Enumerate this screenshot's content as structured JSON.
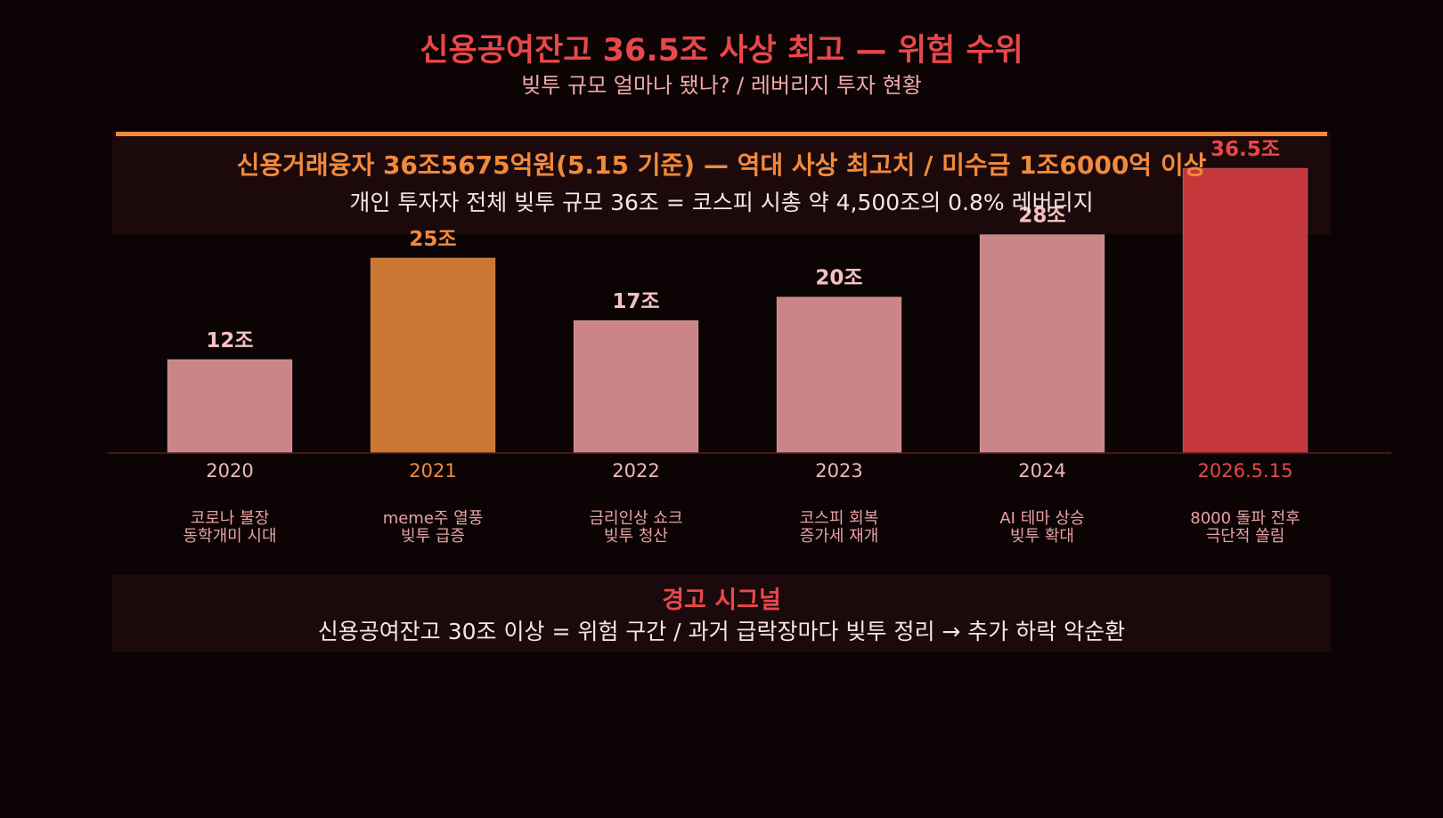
{
  "header": {
    "title": "신용공여잔고 36.5조 사상 최고 — 위험 수위",
    "subtitle": "빚투 규모 얼마나 됐나? / 레버리지 투자 현황"
  },
  "info_box": {
    "line1": "신용거래융자 36조5675억원(5.15 기준) — 역대 사상 최고치 / 미수금 1조6000억 이상",
    "line2": "개인 투자자 전체 빚투 규모 36조 = 코스피 시총 약 4,500조의 0.8% 레버리지"
  },
  "chart_data": {
    "type": "bar",
    "categories": [
      "2020",
      "2021",
      "2022",
      "2023",
      "2024",
      "2026.5.15"
    ],
    "values": [
      12,
      25,
      17,
      20,
      28,
      36.5
    ],
    "value_labels": [
      "12조",
      "25조",
      "17조",
      "20조",
      "28조",
      "36.5조"
    ],
    "descriptions": [
      [
        "코로나 불장",
        "동학개미 시대"
      ],
      [
        "meme주 열풍",
        "빚투 급증"
      ],
      [
        "금리인상 쇼크",
        "빚투 청산"
      ],
      [
        "코스피 회복",
        "증가세 재개"
      ],
      [
        "AI 테마 상승",
        "빚투 확대"
      ],
      [
        "8000 돌파 전후",
        "극단적 쏠림"
      ]
    ],
    "colors": [
      "#cc8587",
      "#cc7634",
      "#cc8587",
      "#cc8587",
      "#cc8587",
      "#c4383b"
    ],
    "label_colors": [
      "#f4c0c0",
      "#f08a3c",
      "#f4c0c0",
      "#f4c0c0",
      "#f4c0c0",
      "#e8474a"
    ],
    "category_colors": [
      "#f0b8b8",
      "#f08a3c",
      "#f0b8b8",
      "#f0b8b8",
      "#f0b8b8",
      "#e8474a"
    ],
    "ylim": [
      0,
      36.5
    ],
    "grid": false,
    "legend": "none"
  },
  "warning": {
    "title": "경고 시그널",
    "text": "신용공여잔고 30조 이상 = 위험 구간 / 과거 급락장마다 빚투 정리 → 추가 하락 악순환"
  }
}
